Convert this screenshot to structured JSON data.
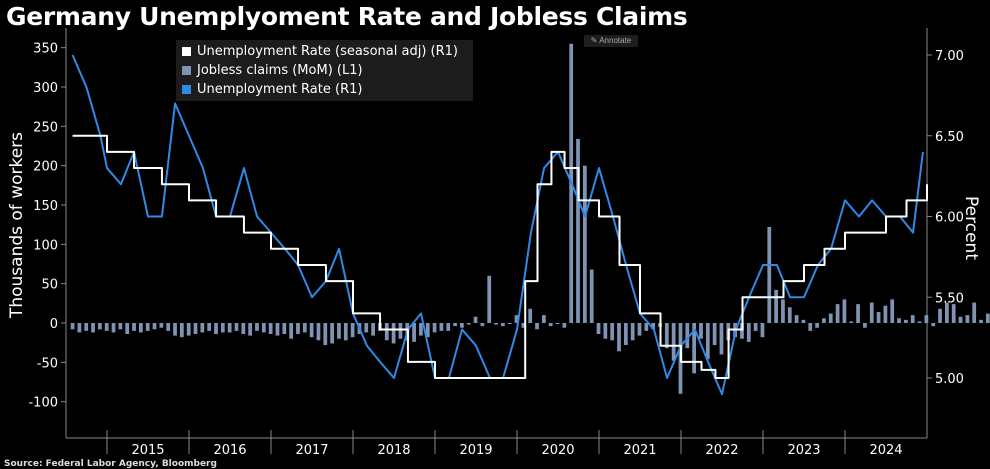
{
  "title": "Germany Unemplyoment Rate and Jobless Claims",
  "source": "Source: Federal Labor Agency, Bloomberg",
  "annotate_label": "Annotate",
  "chart_data": {
    "type": "bar+line",
    "left_axis": {
      "label": "Thousands of workers",
      "ticks": [
        "350",
        "300",
        "250",
        "200",
        "150",
        "100",
        "50",
        "0",
        "-50",
        "-100"
      ],
      "range": [
        -110,
        360
      ]
    },
    "right_axis": {
      "label": "Percent",
      "ticks": [
        "7.00",
        "6.50",
        "6.00",
        "5.50",
        "5.00"
      ],
      "range": [
        4.9,
        7.1
      ]
    },
    "x_ticks": [
      "2015",
      "2016",
      "2017",
      "2018",
      "2019",
      "2020",
      "2021",
      "2022",
      "2023",
      "2024"
    ],
    "x_range": [
      2014.5,
      2025.0
    ],
    "grid": false,
    "legend_position": "top-left",
    "legend": [
      {
        "label": "Unemployment Rate (seasonal adj) (R1)",
        "color": "#ffffff"
      },
      {
        "label": "Jobless claims (MoM) (L1)",
        "color": "#7f93b5"
      },
      {
        "label": "Unemployment Rate (R1)",
        "color": "#2f8ae6"
      }
    ],
    "colors": {
      "sa_line": "#ffffff",
      "bars": "#7f93b5",
      "nsa_line": "#2f8ae6",
      "axis": "#888888"
    },
    "series": [
      {
        "name": "Jobless claims (MoM) (L1)",
        "axis": "left",
        "start": 2014.58,
        "step": 0.0833,
        "values": [
          -8,
          -12,
          -10,
          -12,
          -8,
          -10,
          -12,
          -8,
          -14,
          -10,
          -12,
          -10,
          -8,
          -6,
          -10,
          -16,
          -18,
          -16,
          -14,
          -12,
          -10,
          -14,
          -12,
          -12,
          -10,
          -14,
          -16,
          -10,
          -12,
          -14,
          -16,
          -14,
          -20,
          -14,
          -12,
          -18,
          -22,
          -28,
          -26,
          -20,
          -22,
          -18,
          -14,
          -12,
          -16,
          -10,
          -22,
          -26,
          -20,
          -22,
          -24,
          -16,
          -18,
          -12,
          -10,
          -10,
          -4,
          -6,
          -2,
          8,
          -4,
          60,
          -2,
          -4,
          0,
          10,
          -6,
          18,
          -8,
          10,
          -4,
          0,
          -6,
          355,
          234,
          200,
          68,
          -14,
          -20,
          -22,
          -36,
          -28,
          -22,
          -16,
          -10,
          -8,
          -5,
          -32,
          -48,
          -90,
          -32,
          -64,
          -20,
          -46,
          -28,
          -40,
          -22,
          -18,
          -20,
          -24,
          -10,
          -18,
          122,
          42,
          30,
          20,
          10,
          4,
          -10,
          -6,
          6,
          12,
          24,
          30,
          2,
          24,
          -6,
          26,
          14,
          22,
          30,
          6,
          4,
          10,
          2,
          10,
          -4,
          18,
          26,
          24,
          8,
          10,
          26,
          4,
          12,
          -5,
          10,
          12,
          12
        ]
      },
      {
        "name": "Unemployment Rate (seasonal adj) (R1)",
        "axis": "right",
        "x": [
          2014.58,
          2015.0,
          2015.33,
          2015.67,
          2016.0,
          2016.33,
          2016.67,
          2017.0,
          2017.33,
          2017.67,
          2018.0,
          2018.33,
          2018.67,
          2019.0,
          2019.33,
          2019.67,
          2020.0,
          2020.1,
          2020.25,
          2020.42,
          2020.58,
          2020.75,
          2021.0,
          2021.25,
          2021.5,
          2021.75,
          2022.0,
          2022.25,
          2022.42,
          2022.58,
          2022.75,
          2023.0,
          2023.25,
          2023.5,
          2023.75,
          2024.0,
          2024.25,
          2024.5,
          2024.75,
          2024.92,
          2025.0
        ],
        "values": [
          6.5,
          6.4,
          6.3,
          6.2,
          6.1,
          6.0,
          5.9,
          5.8,
          5.7,
          5.6,
          5.4,
          5.3,
          5.1,
          5.0,
          5.0,
          5.0,
          5.0,
          5.6,
          6.2,
          6.4,
          6.3,
          6.1,
          6.0,
          5.7,
          5.4,
          5.2,
          5.1,
          5.05,
          5.0,
          5.3,
          5.5,
          5.5,
          5.6,
          5.7,
          5.8,
          5.9,
          5.9,
          6.0,
          6.1,
          6.1,
          6.2
        ]
      },
      {
        "name": "Unemployment Rate (R1)",
        "axis": "right",
        "x": [
          2014.58,
          2014.75,
          2014.92,
          2015.0,
          2015.17,
          2015.33,
          2015.5,
          2015.67,
          2015.83,
          2016.0,
          2016.17,
          2016.33,
          2016.5,
          2016.67,
          2016.83,
          2017.0,
          2017.17,
          2017.33,
          2017.5,
          2017.67,
          2017.83,
          2018.0,
          2018.17,
          2018.33,
          2018.5,
          2018.67,
          2018.83,
          2019.0,
          2019.17,
          2019.33,
          2019.5,
          2019.67,
          2019.83,
          2020.0,
          2020.17,
          2020.33,
          2020.5,
          2020.67,
          2020.83,
          2021.0,
          2021.17,
          2021.33,
          2021.5,
          2021.67,
          2021.83,
          2022.0,
          2022.17,
          2022.33,
          2022.5,
          2022.67,
          2022.83,
          2023.0,
          2023.17,
          2023.33,
          2023.5,
          2023.67,
          2023.83,
          2024.0,
          2024.17,
          2024.33,
          2024.5,
          2024.67,
          2024.83,
          2024.95
        ],
        "values": [
          7.0,
          6.8,
          6.5,
          6.3,
          6.2,
          6.4,
          6.0,
          6.0,
          6.7,
          6.5,
          6.3,
          6.0,
          6.0,
          6.3,
          6.0,
          5.9,
          5.8,
          5.7,
          5.5,
          5.6,
          5.8,
          5.4,
          5.2,
          5.1,
          5.0,
          5.3,
          5.4,
          5.0,
          5.0,
          5.3,
          5.2,
          5.0,
          5.0,
          5.3,
          5.9,
          6.3,
          6.4,
          6.2,
          6.0,
          6.3,
          6.0,
          5.7,
          5.4,
          5.3,
          5.0,
          5.2,
          5.3,
          5.1,
          4.9,
          5.3,
          5.5,
          5.7,
          5.7,
          5.5,
          5.5,
          5.7,
          5.8,
          6.1,
          6.0,
          6.1,
          6.0,
          6.0,
          5.9,
          6.4
        ]
      }
    ]
  }
}
